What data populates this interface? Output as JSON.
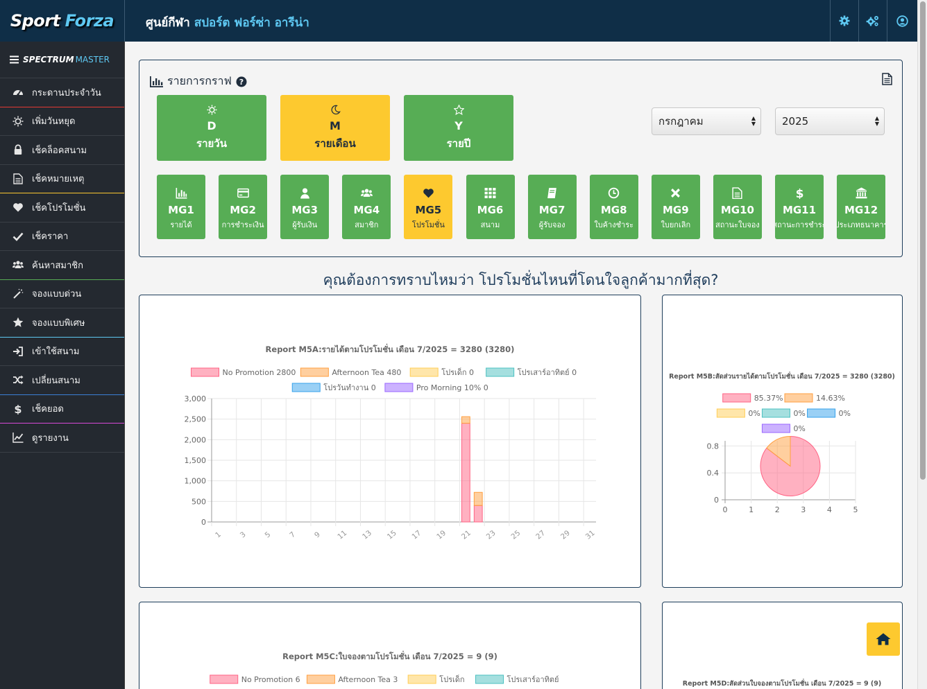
{
  "header": {
    "logo_part1": "Sport",
    "logo_part2": "Forza",
    "venue_prefix": "ศูนย์กีฬา",
    "venue_name": "สปอร์ต ฟอร์ซ่า อารีน่า",
    "icons": [
      "gear-icon",
      "gears-icon",
      "user-circle-icon"
    ]
  },
  "sidebar": {
    "master_part1": "SPECTRUM",
    "master_part2": "MASTER",
    "items": [
      {
        "label": "กระดานประจำวัน",
        "icon": "dashboard-icon",
        "accent": "#e53935"
      },
      {
        "label": "เพิ่มวันหยุด",
        "icon": "sun-icon",
        "accent": ""
      },
      {
        "label": "เช็คล็อคสนาม",
        "icon": "lock-icon",
        "accent": ""
      },
      {
        "label": "เช็คหมายเหตุ",
        "icon": "document-icon",
        "accent": "#fdc92f"
      },
      {
        "label": "เช็คโปรโมชั่น",
        "icon": "heart-icon",
        "accent": ""
      },
      {
        "label": "เช็คราคา",
        "icon": "check-icon",
        "accent": ""
      },
      {
        "label": "ค้นหาสมาชิก",
        "icon": "users-icon",
        "accent": "#57ad55"
      },
      {
        "label": "จองแบบด่วน",
        "icon": "wand-icon",
        "accent": ""
      },
      {
        "label": "จองแบบพิเศษ",
        "icon": "star-icon",
        "accent": "#5ec8f2"
      },
      {
        "label": "เข้าใช้สนาม",
        "icon": "sign-in-icon",
        "accent": ""
      },
      {
        "label": "เปลี่ยนสนาม",
        "icon": "shuffle-icon",
        "accent": "#3b7fd6"
      },
      {
        "label": "เช็คยอด",
        "icon": "dollar-icon",
        "accent": "#d94ad9"
      },
      {
        "label": "ดูรายงาน",
        "icon": "line-chart-icon",
        "accent": ""
      }
    ]
  },
  "panel": {
    "title": "รายการกราฟ",
    "periods": [
      {
        "code": "D",
        "label": "รายวัน",
        "icon": "sun-icon",
        "active": false
      },
      {
        "code": "M",
        "label": "รายเดือน",
        "icon": "moon-icon",
        "active": true
      },
      {
        "code": "Y",
        "label": "รายปี",
        "icon": "star-outline-icon",
        "active": false
      }
    ],
    "month_select": "กรกฎาคม",
    "year_select": "2025",
    "reports": [
      {
        "code": "MG1",
        "label": "รายได้",
        "icon": "bar-chart-icon",
        "active": false
      },
      {
        "code": "MG2",
        "label": "การชำระเงิน",
        "icon": "credit-card-icon",
        "active": false
      },
      {
        "code": "MG3",
        "label": "ผู้รับเงิน",
        "icon": "user-icon",
        "active": false
      },
      {
        "code": "MG4",
        "label": "สมาชิก",
        "icon": "users-icon",
        "active": false
      },
      {
        "code": "MG5",
        "label": "โปรโมชั่น",
        "icon": "heart-icon",
        "active": true
      },
      {
        "code": "MG6",
        "label": "สนาม",
        "icon": "grid-icon",
        "active": false
      },
      {
        "code": "MG7",
        "label": "ผู้รับจอง",
        "icon": "book-icon",
        "active": false
      },
      {
        "code": "MG8",
        "label": "ใบค้างชำระ",
        "icon": "clock-icon",
        "active": false
      },
      {
        "code": "MG9",
        "label": "ใบยกเลิก",
        "icon": "times-icon",
        "active": false
      },
      {
        "code": "MG10",
        "label": "สถานะใบจอง",
        "icon": "file-icon",
        "active": false
      },
      {
        "code": "MG11",
        "label": "สถานะการชำระ",
        "icon": "dollar-icon",
        "active": false
      },
      {
        "code": "MG12",
        "label": "ประเภทธนาคาร",
        "icon": "bank-icon",
        "active": false
      }
    ]
  },
  "question": "คุณต้องการทราบไหมว่า โปรโมชั่นไหนที่โดนใจลูกค้ามากที่สุด?",
  "colors": {
    "header_bg": "#0f2e47",
    "accent_blue": "#5ec8f2",
    "button_green": "#57ad55",
    "button_yellow": "#fdc92f",
    "series": [
      "#ff6384",
      "#ff9f40",
      "#ffcd56",
      "#4bc0c0",
      "#36a2eb",
      "#9966ff"
    ]
  },
  "chart_data": [
    {
      "type": "bar",
      "stacked": true,
      "title": "Report M5A:รายได้ตามโปรโมชั่น เดือน  7/2025 = 3280 (3280)",
      "legend_labels": [
        "No Promotion 2800",
        "Afternoon Tea 480",
        "โปรเด็ก 0",
        "โปรเสาร์อาทิตย์ 0",
        "โปรวันทำงาน 0",
        "Pro Morning 10% 0"
      ],
      "x_ticks": [
        "1",
        "3",
        "5",
        "7",
        "9",
        "11",
        "13",
        "15",
        "17",
        "19",
        "21",
        "23",
        "25",
        "27",
        "29",
        "31"
      ],
      "y_ticks": [
        "0",
        "500",
        "1,000",
        "1,500",
        "2,000",
        "2,500",
        "3,000"
      ],
      "ylim": [
        0,
        3000
      ],
      "series": [
        {
          "name": "No Promotion",
          "points": [
            {
              "x": 21,
              "y": 2400
            },
            {
              "x": 22,
              "y": 400
            }
          ]
        },
        {
          "name": "Afternoon Tea",
          "points": [
            {
              "x": 21,
              "y": 160
            },
            {
              "x": 22,
              "y": 320
            }
          ]
        },
        {
          "name": "โปรเด็ก",
          "points": []
        },
        {
          "name": "โปรเสาร์อาทิตย์",
          "points": []
        },
        {
          "name": "โปรวันทำงาน",
          "points": []
        },
        {
          "name": "Pro Morning 10%",
          "points": []
        }
      ],
      "grid": true
    },
    {
      "type": "pie",
      "title": "Report M5B:สัดส่วนรายได้ตามโปรโมชั่น เดือน  7/2025 = 3280 (3280)",
      "legend_labels": [
        "85.37%",
        "14.63%",
        "0%",
        "0%",
        "0%",
        "0%"
      ],
      "values": [
        85.37,
        14.63,
        0,
        0,
        0,
        0
      ],
      "x_ticks": [
        "0",
        "1",
        "2",
        "3",
        "4",
        "5"
      ],
      "y_ticks": [
        "0",
        "0.4",
        "0.8"
      ],
      "grid": true
    },
    {
      "type": "bar",
      "title": "Report M5C:ใบจองตามโปรโมชั่น เดือน  7/2025 = 9 (9)",
      "legend_labels": [
        "No Promotion 6",
        "Afternoon Tea 3",
        "โปรเด็ก",
        "โปรเสาร์อาทิตย์"
      ]
    },
    {
      "type": "pie",
      "title": "Report M5D:สัดส่วนใบจองตามโปรโมชั่น เดือน  7/2025 = 9 (9)"
    }
  ]
}
